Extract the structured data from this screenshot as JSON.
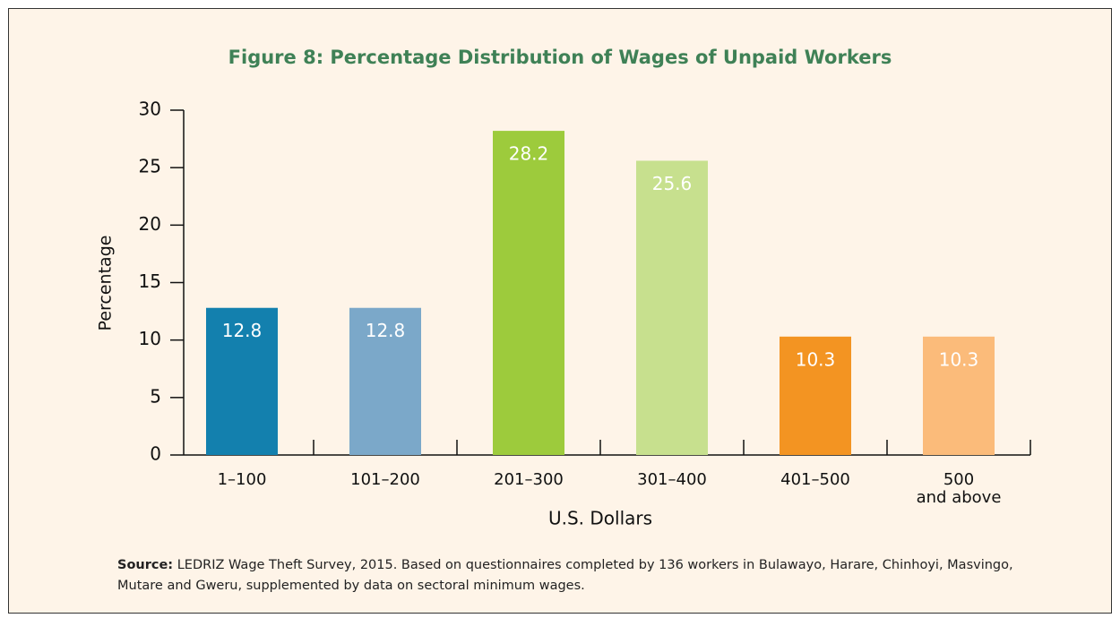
{
  "chart_data": {
    "type": "bar",
    "title": "Figure 8: Percentage Distribution of Wages of Unpaid Workers",
    "x_label": "U.S. Dollars",
    "y_label": "Percentage",
    "categories": [
      "1–100",
      "101–200",
      "201–300",
      "301–400",
      "401–500",
      "500\nand above"
    ],
    "values": [
      12.8,
      12.8,
      28.2,
      25.6,
      10.3,
      10.3
    ],
    "colors": [
      "#1380ae",
      "#7ba8c9",
      "#9dcb3c",
      "#c7e08e",
      "#f39422",
      "#fbbb7a"
    ],
    "ylim": [
      0,
      30
    ],
    "yticks": [
      0,
      5,
      10,
      15,
      20,
      25,
      30
    ],
    "source_label": "Source:",
    "source_text": "LEDRIZ Wage Theft Survey, 2015. Based on questionnaires completed by 136 workers in Bulawayo, Harare, Chinhoyi, Masvingo, Mutare and Gweru, supplemented by data on sectoral minimum wages."
  }
}
